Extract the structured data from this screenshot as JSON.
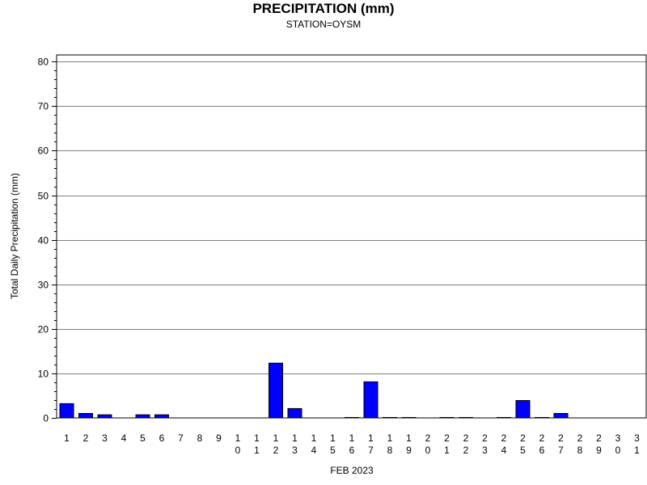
{
  "chart_data": {
    "type": "bar",
    "title": "PRECIPITATION (mm)",
    "subtitle": "STATION=OYSM",
    "xlabel": "FEB 2023",
    "ylabel": "Total Daily Precipitation (mm)",
    "ylim": [
      0,
      80
    ],
    "yticks": [
      0,
      10,
      20,
      30,
      40,
      50,
      60,
      70,
      80
    ],
    "grid": true,
    "categories": [
      "1",
      "2",
      "3",
      "4",
      "5",
      "6",
      "7",
      "8",
      "9",
      "10",
      "11",
      "12",
      "13",
      "14",
      "15",
      "16",
      "17",
      "18",
      "19",
      "20",
      "21",
      "22",
      "23",
      "24",
      "25",
      "26",
      "27",
      "28",
      "29",
      "30",
      "31"
    ],
    "values": [
      3.2,
      1.0,
      0.7,
      0,
      0.7,
      0.7,
      0,
      0,
      0,
      0,
      0,
      12.3,
      2.1,
      0,
      0,
      0.1,
      8.1,
      0.1,
      0.1,
      0,
      0.1,
      0.1,
      0,
      0.1,
      3.9,
      0.1,
      1.0,
      0,
      0,
      0,
      0
    ],
    "bar_color": "#0000ff"
  }
}
